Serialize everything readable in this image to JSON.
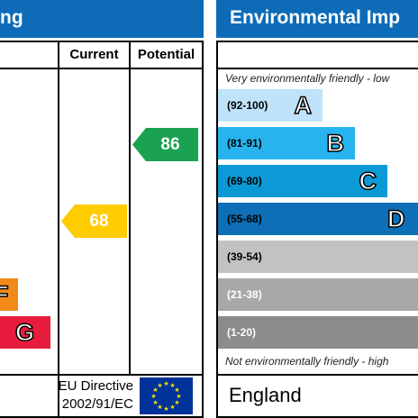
{
  "left_panel": {
    "header_title": "ng",
    "col_current": "Current",
    "col_potential": "Potential",
    "partial_letter_f": "F",
    "letter_g": "G",
    "current_rating": "68",
    "potential_rating": "86",
    "directive_line1": "EU Directive",
    "directive_line2": "2002/91/EC",
    "colors": {
      "header": "#0d6bb8",
      "current": "#ffcc00",
      "potential": "#1aa152",
      "band_f": "#f28a1a",
      "band_g": "#e81c3c"
    }
  },
  "right_panel": {
    "header_title": "Environmental Imp",
    "top_note": "Very environmentally friendly - low",
    "bottom_note": "Not environmentally friendly - high",
    "country": "England",
    "bands": [
      {
        "range": "(92-100)",
        "letter": "A",
        "color": "#bfe3fa"
      },
      {
        "range": "(81-91)",
        "letter": "B",
        "color": "#27b4ee"
      },
      {
        "range": "(69-80)",
        "letter": "C",
        "color": "#0b9ad6"
      },
      {
        "range": "(55-68)",
        "letter": "D",
        "color": "#0e6eb6"
      },
      {
        "range": "(39-54)",
        "letter": "",
        "color": "#c2c2c2"
      },
      {
        "range": "(21-38)",
        "letter": "",
        "color": "#a8a8a8"
      },
      {
        "range": "(1-20)",
        "letter": "",
        "color": "#8c8c8c"
      }
    ]
  }
}
